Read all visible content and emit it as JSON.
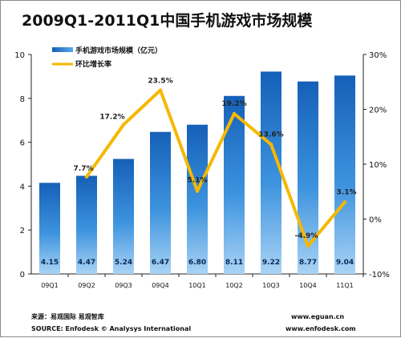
{
  "chart_data": {
    "type": "bar",
    "title": "2009Q1-2011Q1中国手机游戏市场规模",
    "categories": [
      "09Q1",
      "09Q2",
      "09Q3",
      "09Q4",
      "10Q1",
      "10Q2",
      "10Q3",
      "10Q4",
      "11Q1"
    ],
    "series": [
      {
        "name": "手机游戏市场规模（亿元）",
        "type": "bar",
        "axis": "left",
        "values": [
          4.15,
          4.47,
          5.24,
          6.47,
          6.8,
          8.11,
          9.22,
          8.77,
          9.04
        ],
        "labels": [
          "4.15",
          "4.47",
          "5.24",
          "6.47",
          "6.80",
          "8.11",
          "9.22",
          "8.77",
          "9.04"
        ],
        "color": "#1d6fc4"
      },
      {
        "name": "环比增长率",
        "type": "line",
        "axis": "right",
        "values": [
          null,
          7.7,
          17.2,
          23.5,
          5.1,
          19.2,
          13.6,
          -4.9,
          3.1
        ],
        "labels": [
          "",
          "7.7%",
          "17.2%",
          "23.5%",
          "5.1%",
          "19.2%",
          "13.6%",
          "-4.9%",
          "3.1%"
        ],
        "color": "#f5b800"
      }
    ],
    "y_left": {
      "ylim": [
        0,
        10
      ],
      "ticks": [
        "0",
        "2",
        "4",
        "6",
        "8",
        "10"
      ]
    },
    "y_right": {
      "ylim": [
        -10,
        30
      ],
      "ticks": [
        "-10%",
        "0%",
        "10%",
        "20%",
        "30%"
      ]
    },
    "legend_position": "top-left",
    "grid": false
  },
  "footer": {
    "source_cn": "来源：易观国际 易观智库",
    "source_en": "SOURCE: Enfodesk © Analysys International",
    "url1": "www.eguan.cn",
    "url2": "www.enfodesk.com"
  }
}
